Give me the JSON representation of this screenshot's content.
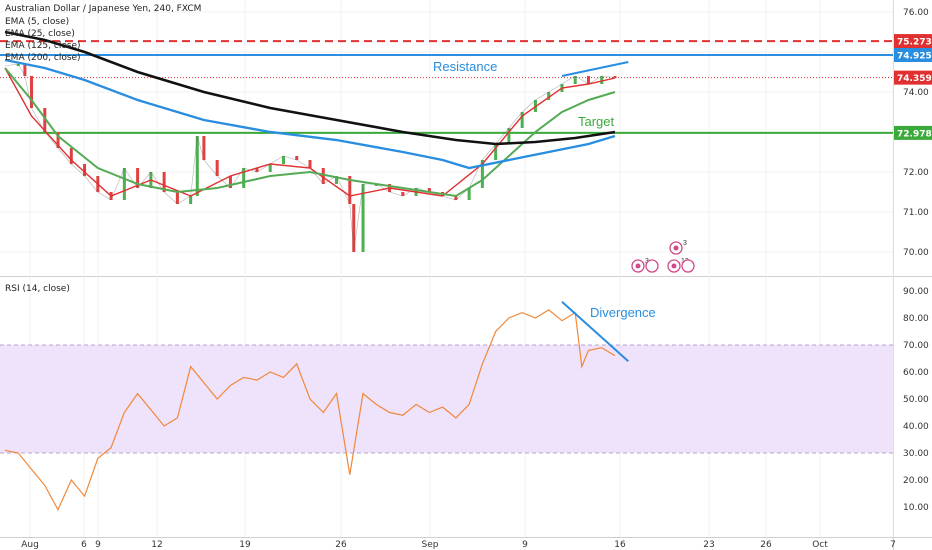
{
  "header": {
    "symbol": "Australian Dollar / Japanese Yen, 240, FXCM",
    "ema_labels": [
      "EMA (5, close)",
      "EMA (25, close)",
      "EMA (125, close)",
      "EMA (200, close)"
    ]
  },
  "chart_data": [
    {
      "type": "line",
      "pane": "price",
      "title": "Australian Dollar / Japanese Yen, 240, FXCM",
      "xlabel": "",
      "ylabel": "",
      "x_axis": {
        "ticks": [
          "Aug",
          "6",
          "9",
          "12",
          "19",
          "26",
          "Sep",
          "9",
          "16",
          "23",
          "26",
          "Oct",
          "7"
        ],
        "day_range": [
          0,
          70
        ]
      },
      "ylim": [
        69.6,
        76.2
      ],
      "y_ticks": [
        "70.00",
        "71.00",
        "72.00",
        "73.00",
        "74.00",
        "75.00",
        "76.00"
      ],
      "grid": true,
      "price_points": [
        [
          0,
          74.65
        ],
        [
          1,
          74.7
        ],
        [
          1.5,
          74.4
        ],
        [
          2,
          73.6
        ],
        [
          3,
          73.0
        ],
        [
          4,
          72.6
        ],
        [
          5,
          72.2
        ],
        [
          6,
          71.9
        ],
        [
          7,
          71.5
        ],
        [
          8,
          71.3
        ],
        [
          9,
          72.1
        ],
        [
          10,
          71.6
        ],
        [
          11,
          72.0
        ],
        [
          12,
          71.5
        ],
        [
          13,
          71.2
        ],
        [
          14,
          71.4
        ],
        [
          14.5,
          72.9
        ],
        [
          15,
          72.3
        ],
        [
          16,
          71.9
        ],
        [
          17,
          71.6
        ],
        [
          18,
          72.1
        ],
        [
          19,
          72.0
        ],
        [
          20,
          72.2
        ],
        [
          21,
          72.4
        ],
        [
          22,
          72.3
        ],
        [
          23,
          72.1
        ],
        [
          24,
          71.7
        ],
        [
          25,
          71.9
        ],
        [
          26,
          71.2
        ],
        [
          26.3,
          70.0
        ],
        [
          27,
          71.7
        ],
        [
          28,
          71.7
        ],
        [
          29,
          71.5
        ],
        [
          30,
          71.4
        ],
        [
          31,
          71.6
        ],
        [
          32,
          71.5
        ],
        [
          33,
          71.4
        ],
        [
          34,
          71.3
        ],
        [
          35,
          71.6
        ],
        [
          36,
          72.3
        ],
        [
          37,
          72.7
        ],
        [
          38,
          73.1
        ],
        [
          39,
          73.5
        ],
        [
          40,
          73.8
        ],
        [
          41,
          74.0
        ],
        [
          42,
          74.2
        ],
        [
          43,
          74.4
        ],
        [
          44,
          74.2
        ],
        [
          45,
          74.4
        ],
        [
          46,
          74.36
        ]
      ],
      "series": [
        {
          "name": "EMA (5, close)",
          "color": "#e03030",
          "points": [
            [
              0,
              74.6
            ],
            [
              2,
              73.4
            ],
            [
              5,
              72.3
            ],
            [
              8,
              71.4
            ],
            [
              11,
              71.8
            ],
            [
              14,
              71.4
            ],
            [
              17,
              71.9
            ],
            [
              20,
              72.2
            ],
            [
              23,
              72.1
            ],
            [
              26,
              71.4
            ],
            [
              29,
              71.6
            ],
            [
              33,
              71.4
            ],
            [
              36,
              72.2
            ],
            [
              39,
              73.4
            ],
            [
              42,
              74.1
            ],
            [
              44,
              74.2
            ],
            [
              46,
              74.35
            ]
          ]
        },
        {
          "name": "EMA (25, close)",
          "color": "#55aa55",
          "points": [
            [
              0,
              74.6
            ],
            [
              2,
              73.8
            ],
            [
              4,
              72.9
            ],
            [
              7,
              72.1
            ],
            [
              10,
              71.7
            ],
            [
              13,
              71.5
            ],
            [
              16,
              71.6
            ],
            [
              20,
              71.9
            ],
            [
              23,
              72.0
            ],
            [
              26,
              71.8
            ],
            [
              30,
              71.6
            ],
            [
              34,
              71.4
            ],
            [
              36,
              71.8
            ],
            [
              38,
              72.4
            ],
            [
              40,
              73.0
            ],
            [
              42,
              73.5
            ],
            [
              44,
              73.8
            ],
            [
              46,
              74.0
            ]
          ]
        },
        {
          "name": "EMA (125, close)",
          "color": "#2a8ee0",
          "points": [
            [
              0,
              74.8
            ],
            [
              3,
              74.6
            ],
            [
              6,
              74.3
            ],
            [
              10,
              73.8
            ],
            [
              15,
              73.3
            ],
            [
              20,
              73.0
            ],
            [
              25,
              72.8
            ],
            [
              30,
              72.5
            ],
            [
              33,
              72.3
            ],
            [
              35,
              72.1
            ],
            [
              38,
              72.3
            ],
            [
              41,
              72.5
            ],
            [
              44,
              72.7
            ],
            [
              46,
              72.9
            ]
          ]
        },
        {
          "name": "EMA (200, close)",
          "color": "#111111",
          "points": [
            [
              0,
              75.5
            ],
            [
              3,
              75.3
            ],
            [
              6,
              75.0
            ],
            [
              10,
              74.5
            ],
            [
              15,
              74.0
            ],
            [
              20,
              73.6
            ],
            [
              25,
              73.3
            ],
            [
              30,
              73.0
            ],
            [
              34,
              72.8
            ],
            [
              37,
              72.7
            ],
            [
              40,
              72.75
            ],
            [
              43,
              72.85
            ],
            [
              46,
              73.0
            ]
          ]
        }
      ],
      "levels": [
        {
          "value": 75.273,
          "label": "75.273",
          "color": "#e03030",
          "style": "dashed"
        },
        {
          "value": 74.925,
          "label": "74.925",
          "color": "#2a8ee0",
          "style": "solid"
        },
        {
          "value": 74.359,
          "label": "74.359",
          "color": "#e03030",
          "style": "dotted"
        },
        {
          "value": 72.978,
          "label": "72.978",
          "color": "#3aaa3a",
          "style": "solid"
        }
      ],
      "annotations": [
        {
          "text": "Resistance",
          "color": "#2a8ee0"
        },
        {
          "text": "Target",
          "color": "#3aaa3a"
        }
      ],
      "trendline": {
        "from": [
          42,
          74.4
        ],
        "to": [
          47,
          74.75
        ],
        "color": "#2a8ee0"
      },
      "event_markers": [
        "3",
        "3",
        "12"
      ]
    },
    {
      "type": "line",
      "pane": "rsi",
      "title": "RSI (14, close)",
      "xlabel": "",
      "ylabel": "",
      "ylim": [
        5,
        92
      ],
      "y_ticks": [
        "10.00",
        "20.00",
        "30.00",
        "40.00",
        "50.00",
        "60.00",
        "70.00",
        "80.00",
        "90.00"
      ],
      "overbought": 70,
      "oversold": 30,
      "band_color": "#efe2fb",
      "series": [
        {
          "name": "RSI (14, close)",
          "color": "#f0883a",
          "points": [
            [
              0,
              31
            ],
            [
              1,
              30
            ],
            [
              2,
              24
            ],
            [
              3,
              18
            ],
            [
              4,
              9
            ],
            [
              5,
              20
            ],
            [
              6,
              14
            ],
            [
              7,
              28
            ],
            [
              8,
              32
            ],
            [
              9,
              45
            ],
            [
              10,
              52
            ],
            [
              11,
              46
            ],
            [
              12,
              40
            ],
            [
              13,
              43
            ],
            [
              14,
              62
            ],
            [
              15,
              56
            ],
            [
              16,
              50
            ],
            [
              17,
              55
            ],
            [
              18,
              58
            ],
            [
              19,
              57
            ],
            [
              20,
              60
            ],
            [
              21,
              58
            ],
            [
              22,
              63
            ],
            [
              23,
              50
            ],
            [
              24,
              45
            ],
            [
              25,
              52
            ],
            [
              26,
              22
            ],
            [
              27,
              52
            ],
            [
              28,
              48
            ],
            [
              29,
              45
            ],
            [
              30,
              44
            ],
            [
              31,
              48
            ],
            [
              32,
              45
            ],
            [
              33,
              47
            ],
            [
              34,
              43
            ],
            [
              35,
              48
            ],
            [
              36,
              63
            ],
            [
              37,
              75
            ],
            [
              38,
              80
            ],
            [
              39,
              82
            ],
            [
              40,
              80
            ],
            [
              41,
              83
            ],
            [
              42,
              79
            ],
            [
              43,
              82
            ],
            [
              43.5,
              62
            ],
            [
              44,
              68
            ],
            [
              45,
              69
            ],
            [
              46,
              66
            ]
          ]
        }
      ],
      "annotations": [
        {
          "text": "Divergence",
          "color": "#2a8ee0"
        }
      ],
      "trendline": {
        "from": [
          42,
          86
        ],
        "to": [
          47,
          64
        ],
        "color": "#2a8ee0"
      }
    }
  ]
}
